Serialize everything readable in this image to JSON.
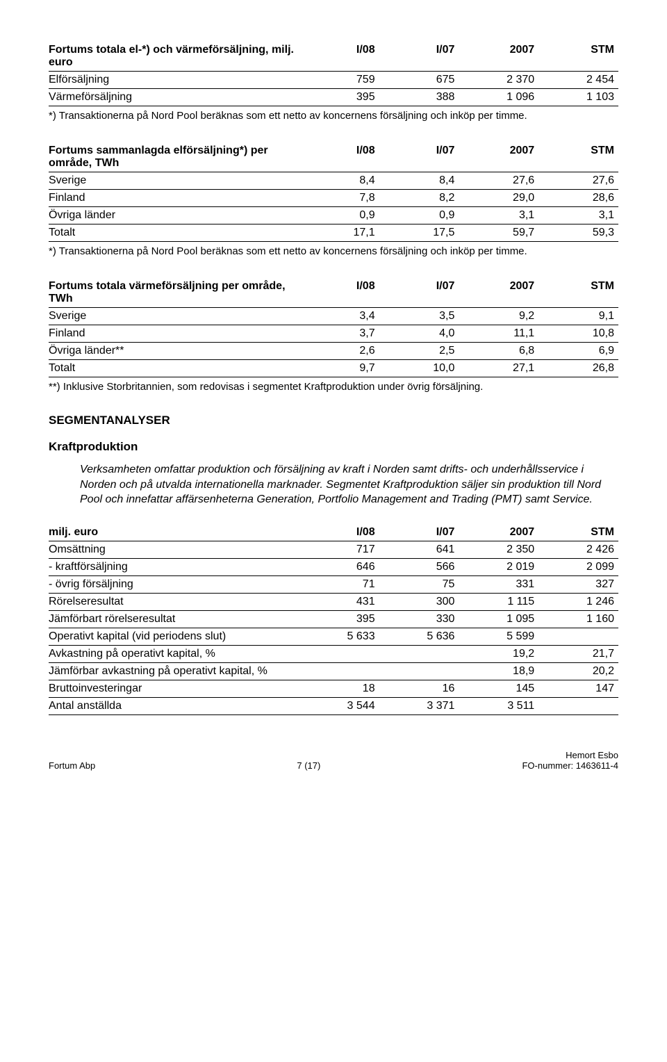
{
  "table1": {
    "title": "Fortums totala el-*) och värmeförsäljning, milj. euro",
    "headers": [
      "I/08",
      "I/07",
      "2007",
      "STM"
    ],
    "rows": [
      {
        "label": "Elförsäljning",
        "v": [
          "759",
          "675",
          "2 370",
          "2 454"
        ]
      },
      {
        "label": "Värmeförsäljning",
        "v": [
          "395",
          "388",
          "1 096",
          "1 103"
        ]
      }
    ],
    "note": "*) Transaktionerna på Nord Pool beräknas som ett netto av koncernens försäljning och inköp per timme."
  },
  "table2": {
    "title": "Fortums sammanlagda elförsäljning*) per område, TWh",
    "headers": [
      "I/08",
      "I/07",
      "2007",
      "STM"
    ],
    "rows": [
      {
        "label": "Sverige",
        "v": [
          "8,4",
          "8,4",
          "27,6",
          "27,6"
        ]
      },
      {
        "label": "Finland",
        "v": [
          "7,8",
          "8,2",
          "29,0",
          "28,6"
        ]
      },
      {
        "label": "Övriga länder",
        "v": [
          "0,9",
          "0,9",
          "3,1",
          "3,1"
        ]
      },
      {
        "label": "Totalt",
        "v": [
          "17,1",
          "17,5",
          "59,7",
          "59,3"
        ]
      }
    ],
    "note": "*) Transaktionerna på Nord Pool beräknas som ett netto av koncernens försäljning och inköp per timme."
  },
  "table3": {
    "title": "Fortums totala värmeförsäljning per område, TWh",
    "headers": [
      "I/08",
      "I/07",
      "2007",
      "STM"
    ],
    "rows": [
      {
        "label": "Sverige",
        "v": [
          "3,4",
          "3,5",
          "9,2",
          "9,1"
        ]
      },
      {
        "label": "Finland",
        "v": [
          "3,7",
          "4,0",
          "11,1",
          "10,8"
        ]
      },
      {
        "label": "Övriga länder**",
        "v": [
          "2,6",
          "2,5",
          "6,8",
          "6,9"
        ]
      },
      {
        "label": "Totalt",
        "v": [
          "9,7",
          "10,0",
          "27,1",
          "26,8"
        ]
      }
    ],
    "note": "**) Inklusive Storbritannien, som redovisas i segmentet Kraftproduktion under övrig försäljning."
  },
  "segHeading": "SEGMENTANALYSER",
  "subHeading": "Kraftproduktion",
  "bodyText": "Verksamheten omfattar produktion och försäljning av kraft i Norden samt drifts- och underhållsservice i Norden och på utvalda internationella marknader. Segmentet Kraftproduktion säljer sin produktion till Nord Pool och innefattar affärsenheterna Generation, Portfolio Management and Trading (PMT) samt Service.",
  "table4": {
    "title": "milj. euro",
    "headers": [
      "I/08",
      "I/07",
      "2007",
      "STM"
    ],
    "rows": [
      {
        "label": "Omsättning",
        "v": [
          "717",
          "641",
          "2 350",
          "2 426"
        ]
      },
      {
        "label": "- kraftförsäljning",
        "v": [
          "646",
          "566",
          "2 019",
          "2 099"
        ]
      },
      {
        "label": "- övrig försäljning",
        "v": [
          "71",
          "75",
          "331",
          "327"
        ]
      },
      {
        "label": "Rörelseresultat",
        "v": [
          "431",
          "300",
          "1 115",
          "1 246"
        ]
      },
      {
        "label": "Jämförbart rörelseresultat",
        "v": [
          "395",
          "330",
          "1 095",
          "1 160"
        ]
      },
      {
        "label": "Operativt kapital (vid periodens slut)",
        "v": [
          "5 633",
          "5 636",
          "5 599",
          ""
        ]
      },
      {
        "label": "Avkastning på operativt kapital, %",
        "v": [
          "",
          "",
          "19,2",
          "21,7"
        ]
      },
      {
        "label": "Jämförbar avkastning på operativt kapital, %",
        "v": [
          "",
          "",
          "18,9",
          "20,2"
        ]
      },
      {
        "label": "Bruttoinvesteringar",
        "v": [
          "18",
          "16",
          "145",
          "147"
        ]
      },
      {
        "label": "Antal anställda",
        "v": [
          "3 544",
          "3 371",
          "3 511",
          ""
        ]
      }
    ]
  },
  "footer": {
    "left": "Fortum Abp",
    "center": "7 (17)",
    "right1": "Hemort Esbo",
    "right2": "FO-nummer: 1463611-4"
  }
}
